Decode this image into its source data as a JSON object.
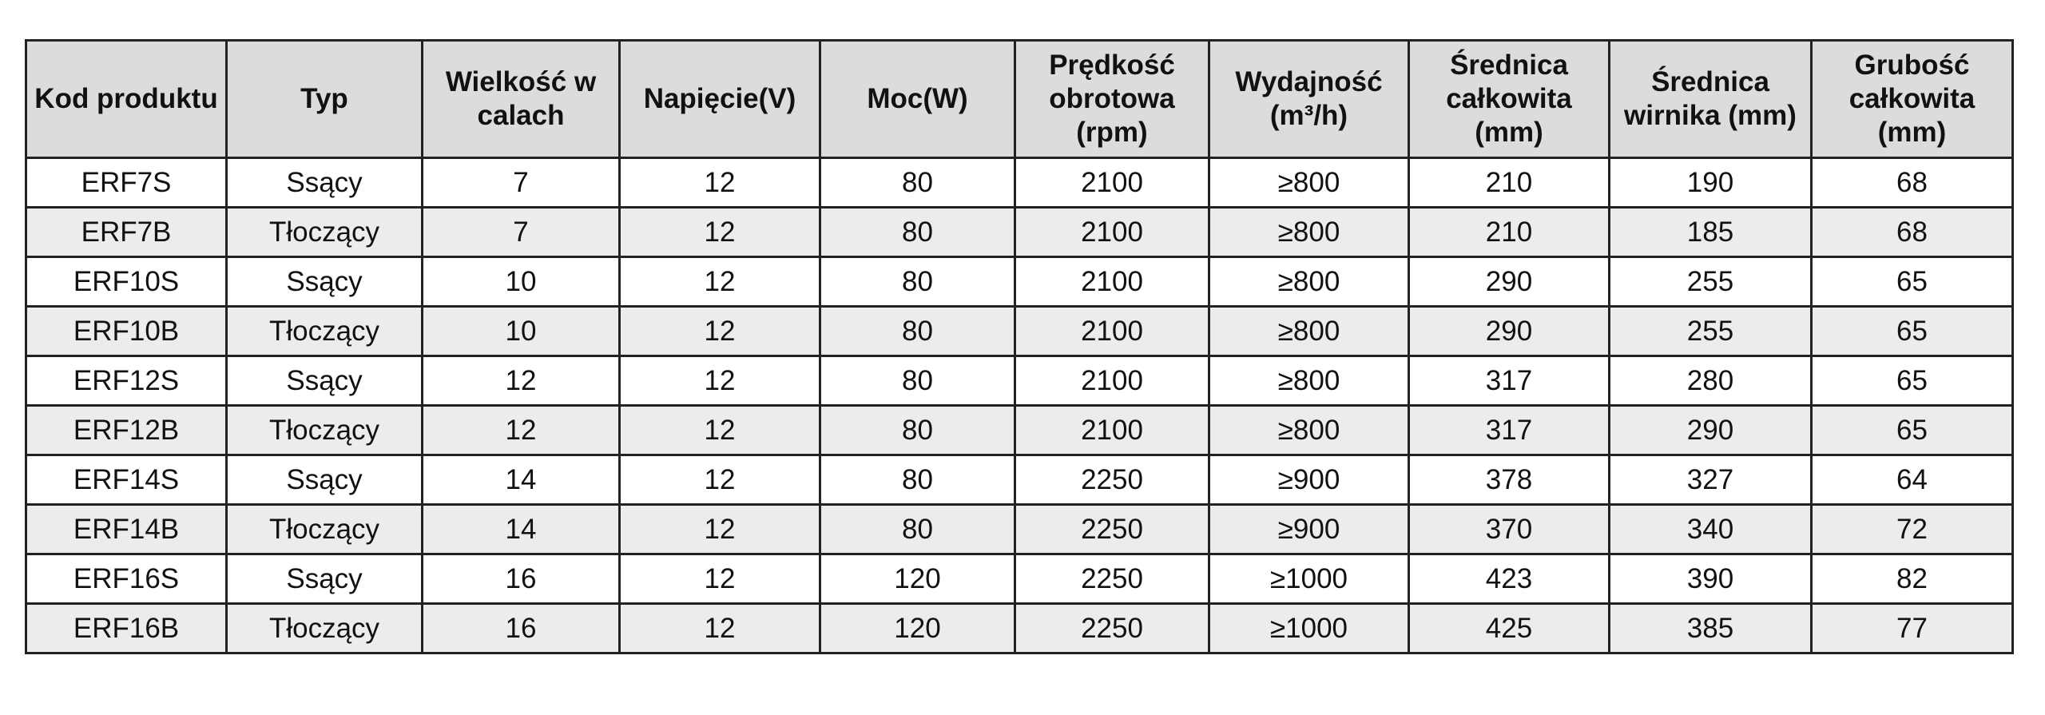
{
  "table": {
    "columns": [
      "Kod produktu",
      "Typ",
      "Wielkość w calach",
      "Napięcie(V)",
      "Moc(W)",
      "Prędkość obrotowa (rpm)",
      "Wydajność (m³/h)",
      "Średnica całkowita (mm)",
      "Średnica wirnika (mm)",
      "Grubość całkowita (mm)"
    ],
    "rows": [
      [
        "ERF7S",
        "Ssący",
        "7",
        "12",
        "80",
        "2100",
        "≥800",
        "210",
        "190",
        "68"
      ],
      [
        "ERF7B",
        "Tłoczący",
        "7",
        "12",
        "80",
        "2100",
        "≥800",
        "210",
        "185",
        "68"
      ],
      [
        "ERF10S",
        "Ssący",
        "10",
        "12",
        "80",
        "2100",
        "≥800",
        "290",
        "255",
        "65"
      ],
      [
        "ERF10B",
        "Tłoczący",
        "10",
        "12",
        "80",
        "2100",
        "≥800",
        "290",
        "255",
        "65"
      ],
      [
        "ERF12S",
        "Ssący",
        "12",
        "12",
        "80",
        "2100",
        "≥800",
        "317",
        "280",
        "65"
      ],
      [
        "ERF12B",
        "Tłoczący",
        "12",
        "12",
        "80",
        "2100",
        "≥800",
        "317",
        "290",
        "65"
      ],
      [
        "ERF14S",
        "Ssący",
        "14",
        "12",
        "80",
        "2250",
        "≥900",
        "378",
        "327",
        "64"
      ],
      [
        "ERF14B",
        "Tłoczący",
        "14",
        "12",
        "80",
        "2250",
        "≥900",
        "370",
        "340",
        "72"
      ],
      [
        "ERF16S",
        "Ssący",
        "16",
        "12",
        "120",
        "2250",
        "≥1000",
        "423",
        "390",
        "82"
      ],
      [
        "ERF16B",
        "Tłoczący",
        "16",
        "12",
        "120",
        "2250",
        "≥1000",
        "425",
        "385",
        "77"
      ]
    ]
  }
}
